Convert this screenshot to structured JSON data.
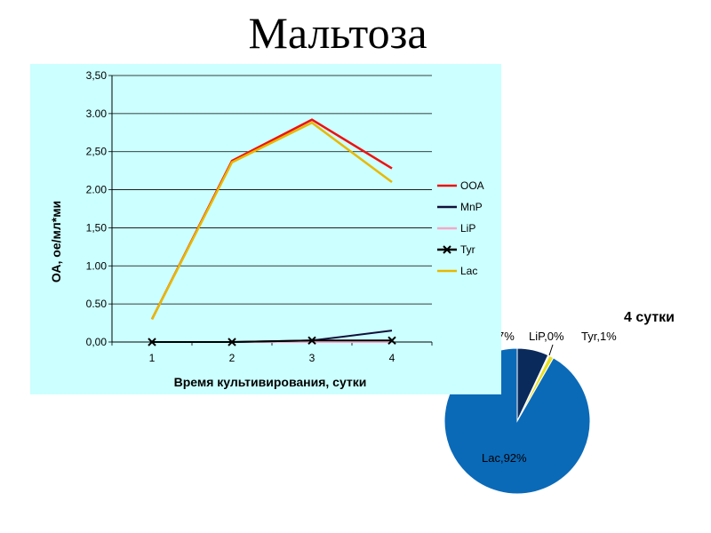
{
  "title": "Мальтоза",
  "chart_data": [
    {
      "type": "line",
      "title": "",
      "xlabel": "Время культивирования, сутки",
      "ylabel": "ОА, ое/мл*ми",
      "categories": [
        "1",
        "2",
        "3",
        "4"
      ],
      "ylim": [
        0,
        3.5
      ],
      "yticks": [
        "0,00",
        "0.50",
        "1.00",
        "1,50",
        "2.00",
        "2,50",
        "3.00",
        "3,50"
      ],
      "grid": "horizontal",
      "legend_position": "right",
      "series": [
        {
          "name": "OOA",
          "color": "#ee1111",
          "marker": "none",
          "values": [
            0.3,
            2.38,
            2.92,
            2.28
          ]
        },
        {
          "name": "MnP",
          "color": "#10103a",
          "marker": "none",
          "values": [
            0,
            0,
            0.02,
            0.15
          ]
        },
        {
          "name": "LiP",
          "color": "#f4a8c8",
          "marker": "none",
          "values": [
            0,
            0,
            0,
            0
          ]
        },
        {
          "name": "Tyr",
          "color": "#000000",
          "marker": "x",
          "values": [
            0,
            0,
            0.02,
            0.02
          ]
        },
        {
          "name": "Lac",
          "color": "#e8b800",
          "marker": "none",
          "values": [
            0.3,
            2.36,
            2.88,
            2.1
          ]
        }
      ]
    },
    {
      "type": "pie",
      "title": "4 сутки",
      "slices": [
        {
          "name": "MnP",
          "value": 7,
          "color": "#0b2a5c",
          "label": "7%"
        },
        {
          "name": "LiP",
          "value": 0.3,
          "color": "#e8e8e8",
          "label": "LiP,0%"
        },
        {
          "name": "Tyr",
          "value": 1,
          "color": "#e8e020",
          "label": "Tyr,1%"
        },
        {
          "name": "Lac",
          "value": 92,
          "color": "#0a6ab8",
          "label": "Lac,92%"
        }
      ]
    }
  ]
}
